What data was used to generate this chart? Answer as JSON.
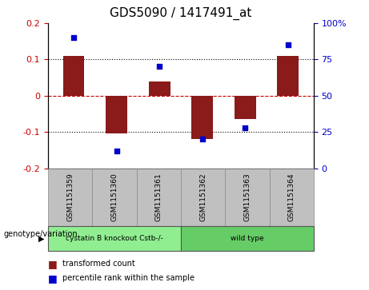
{
  "title": "GDS5090 / 1417491_at",
  "samples": [
    "GSM1151359",
    "GSM1151360",
    "GSM1151361",
    "GSM1151362",
    "GSM1151363",
    "GSM1151364"
  ],
  "bar_values": [
    0.11,
    -0.105,
    0.04,
    -0.12,
    -0.065,
    0.11
  ],
  "percentile_values": [
    90,
    12,
    70,
    20,
    28,
    85
  ],
  "bar_color": "#8B1A1A",
  "dot_color": "#0000CC",
  "ylim_left": [
    -0.2,
    0.2
  ],
  "ylim_right": [
    0,
    100
  ],
  "yticks_left": [
    -0.2,
    -0.1,
    0.0,
    0.1,
    0.2
  ],
  "ytick_labels_left": [
    "-0.2",
    "-0.1",
    "0",
    "0.1",
    "0.2"
  ],
  "yticks_right": [
    0,
    25,
    50,
    75,
    100
  ],
  "ytick_labels_right": [
    "0",
    "25",
    "50",
    "75",
    "100%"
  ],
  "groups": [
    {
      "label": "cystatin B knockout Cstb-/-",
      "samples": [
        0,
        1,
        2
      ],
      "color": "#90EE90"
    },
    {
      "label": "wild type",
      "samples": [
        3,
        4,
        5
      ],
      "color": "#66CC66"
    }
  ],
  "group_row_label": "genotype/variation",
  "legend_bar_label": "transformed count",
  "legend_dot_label": "percentile rank within the sample",
  "hline_zero_color": "#CC0000",
  "hline_dotted_color": "#000000",
  "plot_bg_color": "#FFFFFF",
  "label_area_color": "#C0C0C0",
  "bar_width": 0.5
}
